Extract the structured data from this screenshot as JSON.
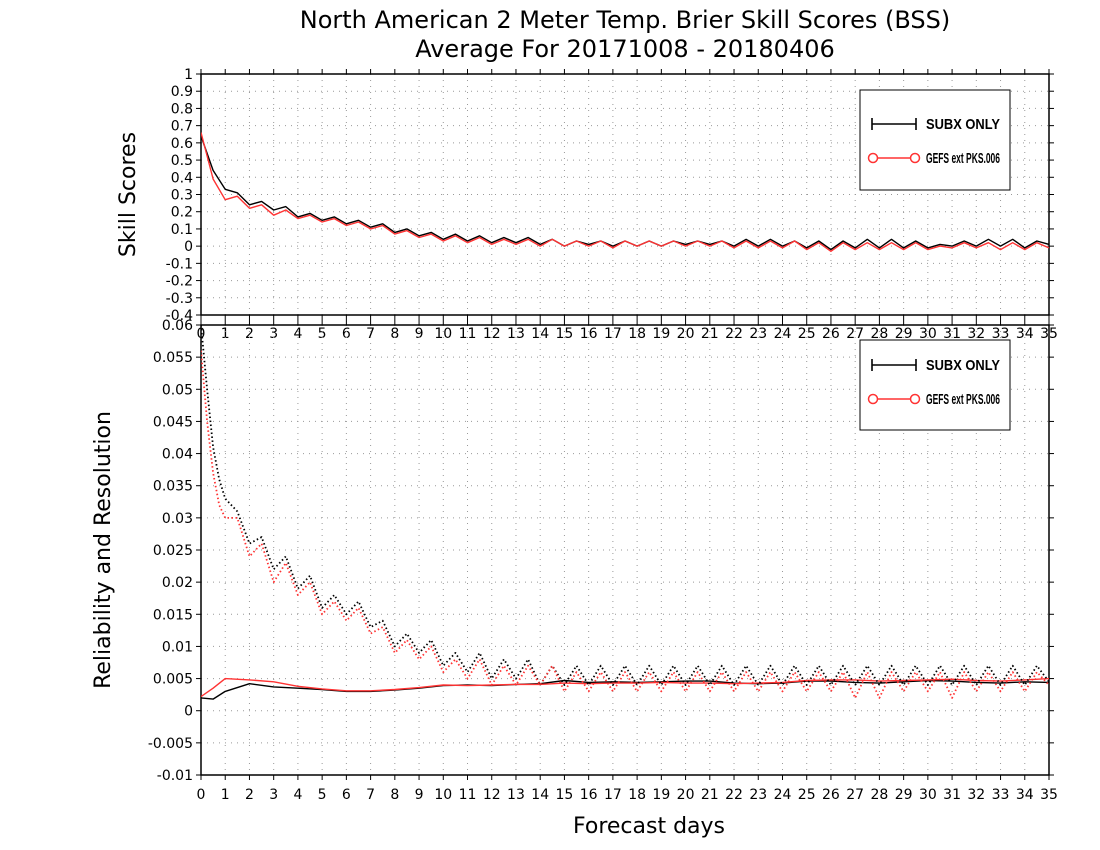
{
  "title": {
    "line1": "North American 2 Meter Temp. Brier Skill Scores (BSS)",
    "line2": "Average For 20171008 - 20180406"
  },
  "colors": {
    "sub_x": "#000000",
    "gefs": "#ff3333"
  },
  "chart_data": [
    {
      "type": "line",
      "ylabel": "Skill Scores",
      "ylim": [
        -0.4,
        1
      ],
      "y_ticks": [
        "1",
        "0.9",
        "0.8",
        "0.7",
        "0.6",
        "0.5",
        "0.4",
        "0.3",
        "0.2",
        "0.1",
        "0",
        "-0.1",
        "-0.2",
        "-0.3",
        "-0.4"
      ],
      "x_ticks": [
        "0",
        "1",
        "2",
        "3",
        "4",
        "5",
        "6",
        "7",
        "8",
        "9",
        "10",
        "11",
        "12",
        "13",
        "14",
        "15",
        "16",
        "17",
        "18",
        "19",
        "20",
        "21",
        "22",
        "23",
        "24",
        "25",
        "26",
        "27",
        "28",
        "29",
        "30",
        "31",
        "32",
        "33",
        "34",
        "35"
      ],
      "xlim": [
        0,
        35
      ],
      "grid": true,
      "legend_position": "top-right",
      "legend": [
        "SUBX ONLY",
        "GEFS ext PKS.006"
      ],
      "series": [
        {
          "name": "SUBX ONLY",
          "x": [
            0,
            0.5,
            1,
            1.5,
            2,
            2.5,
            3,
            3.5,
            4,
            4.5,
            5,
            5.5,
            6,
            6.5,
            7,
            7.5,
            8,
            8.5,
            9,
            9.5,
            10,
            10.5,
            11,
            11.5,
            12,
            12.5,
            13,
            13.5,
            14,
            14.5,
            15,
            15.5,
            16,
            16.5,
            17,
            17.5,
            18,
            18.5,
            19,
            19.5,
            20,
            20.5,
            21,
            21.5,
            22,
            22.5,
            23,
            23.5,
            24,
            24.5,
            25,
            25.5,
            26,
            26.5,
            27,
            27.5,
            28,
            28.5,
            29,
            29.5,
            30,
            30.5,
            31,
            31.5,
            32,
            32.5,
            33,
            33.5,
            34,
            34.5,
            35
          ],
          "y": [
            0.64,
            0.44,
            0.33,
            0.31,
            0.24,
            0.26,
            0.21,
            0.23,
            0.17,
            0.19,
            0.15,
            0.17,
            0.13,
            0.15,
            0.11,
            0.13,
            0.08,
            0.1,
            0.06,
            0.08,
            0.04,
            0.07,
            0.03,
            0.06,
            0.02,
            0.05,
            0.02,
            0.05,
            0.01,
            0.04,
            0.0,
            0.03,
            0.01,
            0.03,
            0.0,
            0.03,
            0.0,
            0.03,
            0.0,
            0.03,
            0.01,
            0.03,
            0.01,
            0.03,
            0.0,
            0.04,
            0.0,
            0.04,
            0.0,
            0.03,
            -0.01,
            0.03,
            -0.02,
            0.03,
            -0.01,
            0.04,
            -0.01,
            0.04,
            -0.01,
            0.03,
            -0.01,
            0.01,
            0.0,
            0.03,
            0.0,
            0.04,
            0.0,
            0.04,
            -0.01,
            0.03,
            0.01
          ]
        },
        {
          "name": "GEFS ext PKS.006",
          "x": [
            0,
            0.5,
            1,
            1.5,
            2,
            2.5,
            3,
            3.5,
            4,
            4.5,
            5,
            5.5,
            6,
            6.5,
            7,
            7.5,
            8,
            8.5,
            9,
            9.5,
            10,
            10.5,
            11,
            11.5,
            12,
            12.5,
            13,
            13.5,
            14,
            14.5,
            15,
            15.5,
            16,
            16.5,
            17,
            17.5,
            18,
            18.5,
            19,
            19.5,
            20,
            20.5,
            21,
            21.5,
            22,
            22.5,
            23,
            23.5,
            24,
            24.5,
            25,
            25.5,
            26,
            26.5,
            27,
            27.5,
            28,
            28.5,
            29,
            29.5,
            30,
            30.5,
            31,
            31.5,
            32,
            32.5,
            33,
            33.5,
            34,
            34.5,
            35
          ],
          "y": [
            0.66,
            0.39,
            0.27,
            0.29,
            0.22,
            0.24,
            0.18,
            0.21,
            0.16,
            0.18,
            0.14,
            0.16,
            0.12,
            0.14,
            0.1,
            0.12,
            0.07,
            0.09,
            0.05,
            0.07,
            0.03,
            0.06,
            0.02,
            0.05,
            0.01,
            0.04,
            0.01,
            0.04,
            0.0,
            0.04,
            0.0,
            0.03,
            0.0,
            0.03,
            -0.01,
            0.03,
            0.0,
            0.03,
            0.0,
            0.03,
            0.0,
            0.03,
            0.0,
            0.03,
            -0.01,
            0.03,
            -0.01,
            0.03,
            -0.01,
            0.03,
            -0.02,
            0.02,
            -0.03,
            0.02,
            -0.02,
            0.02,
            -0.02,
            0.02,
            -0.02,
            0.02,
            -0.02,
            0.0,
            -0.01,
            0.02,
            -0.01,
            0.02,
            -0.02,
            0.02,
            -0.02,
            0.02,
            -0.01
          ]
        }
      ]
    },
    {
      "type": "line",
      "ylabel": "Reliability and Resolution",
      "xlabel": "Forecast days",
      "ylim": [
        -0.01,
        0.06
      ],
      "y_ticks": [
        "0.06",
        "0.055",
        "0.05",
        "0.045",
        "0.04",
        "0.035",
        "0.03",
        "0.025",
        "0.02",
        "0.015",
        "0.01",
        "0.005",
        "0",
        "-0.005",
        "-0.01"
      ],
      "x_ticks": [
        "0",
        "1",
        "2",
        "3",
        "4",
        "5",
        "6",
        "7",
        "8",
        "9",
        "10",
        "11",
        "12",
        "13",
        "14",
        "15",
        "16",
        "17",
        "18",
        "19",
        "20",
        "21",
        "22",
        "23",
        "24",
        "25",
        "26",
        "27",
        "28",
        "29",
        "30",
        "31",
        "32",
        "33",
        "34",
        "35"
      ],
      "xlim": [
        0,
        35
      ],
      "grid": true,
      "legend_position": "top-right",
      "legend": [
        "SUBX ONLY",
        "GEFS ext PKS.006"
      ],
      "series": [
        {
          "name": "SUBX ONLY",
          "style": "solid",
          "x": [
            0,
            0.5,
            1,
            2,
            3,
            4,
            5,
            6,
            7,
            8,
            9,
            10,
            11,
            12,
            13,
            14,
            15,
            16,
            17,
            18,
            19,
            20,
            21,
            22,
            23,
            24,
            25,
            26,
            27,
            28,
            29,
            30,
            31,
            32,
            33,
            34,
            35
          ],
          "y": [
            0.002,
            0.0018,
            0.003,
            0.0042,
            0.0037,
            0.0035,
            0.0033,
            0.003,
            0.003,
            0.0032,
            0.0035,
            0.0039,
            0.004,
            0.0039,
            0.0041,
            0.0042,
            0.0047,
            0.0044,
            0.0045,
            0.0044,
            0.0045,
            0.0046,
            0.0046,
            0.0043,
            0.0042,
            0.0043,
            0.0046,
            0.0046,
            0.0044,
            0.0043,
            0.0045,
            0.0047,
            0.0046,
            0.0044,
            0.0043,
            0.0045,
            0.0044
          ]
        },
        {
          "name": "GEFS ext PKS.006",
          "style": "solid",
          "x": [
            0,
            0.5,
            1,
            2,
            3,
            4,
            5,
            6,
            7,
            8,
            9,
            10,
            11,
            12,
            13,
            14,
            15,
            16,
            17,
            18,
            19,
            20,
            21,
            22,
            23,
            24,
            25,
            26,
            27,
            28,
            29,
            30,
            31,
            32,
            33,
            34,
            35
          ],
          "y": [
            0.0022,
            0.0035,
            0.005,
            0.0048,
            0.0045,
            0.0038,
            0.0034,
            0.0031,
            0.0031,
            0.0033,
            0.0036,
            0.004,
            0.0039,
            0.004,
            0.0041,
            0.0041,
            0.0043,
            0.0042,
            0.0043,
            0.0043,
            0.0044,
            0.0043,
            0.0043,
            0.0042,
            0.0043,
            0.0044,
            0.0047,
            0.0048,
            0.0048,
            0.0046,
            0.0047,
            0.0048,
            0.0049,
            0.0047,
            0.0046,
            0.0048,
            0.005
          ]
        },
        {
          "name": "SUBX ONLY",
          "style": "dotted",
          "x": [
            0,
            0.25,
            0.5,
            0.75,
            1,
            1.5,
            2,
            2.5,
            3,
            3.5,
            4,
            4.5,
            5,
            5.5,
            6,
            6.5,
            7,
            7.5,
            8,
            8.5,
            9,
            9.5,
            10,
            10.5,
            11,
            11.5,
            12,
            12.5,
            13,
            13.5,
            14,
            14.5,
            15,
            15.5,
            16,
            16.5,
            17,
            17.5,
            18,
            18.5,
            19,
            19.5,
            20,
            20.5,
            21,
            21.5,
            22,
            22.5,
            23,
            23.5,
            24,
            24.5,
            25,
            25.5,
            26,
            26.5,
            27,
            27.5,
            28,
            28.5,
            29,
            29.5,
            30,
            30.5,
            31,
            31.5,
            32,
            32.5,
            33,
            33.5,
            34,
            34.5,
            35
          ],
          "y": [
            0.06,
            0.05,
            0.041,
            0.036,
            0.033,
            0.031,
            0.026,
            0.027,
            0.022,
            0.024,
            0.019,
            0.021,
            0.016,
            0.018,
            0.015,
            0.017,
            0.013,
            0.014,
            0.01,
            0.012,
            0.009,
            0.011,
            0.007,
            0.009,
            0.006,
            0.009,
            0.005,
            0.008,
            0.005,
            0.008,
            0.004,
            0.007,
            0.004,
            0.007,
            0.004,
            0.007,
            0.004,
            0.007,
            0.004,
            0.007,
            0.004,
            0.007,
            0.004,
            0.007,
            0.004,
            0.007,
            0.004,
            0.007,
            0.004,
            0.007,
            0.004,
            0.007,
            0.004,
            0.007,
            0.004,
            0.007,
            0.004,
            0.007,
            0.004,
            0.007,
            0.004,
            0.007,
            0.004,
            0.007,
            0.004,
            0.007,
            0.004,
            0.007,
            0.004,
            0.007,
            0.004,
            0.007,
            0.0045
          ]
        },
        {
          "name": "GEFS ext PKS.006",
          "style": "dotted",
          "x": [
            0,
            0.25,
            0.5,
            0.75,
            1,
            1.5,
            2,
            2.5,
            3,
            3.5,
            4,
            4.5,
            5,
            5.5,
            6,
            6.5,
            7,
            7.5,
            8,
            8.5,
            9,
            9.5,
            10,
            10.5,
            11,
            11.5,
            12,
            12.5,
            13,
            13.5,
            14,
            14.5,
            15,
            15.5,
            16,
            16.5,
            17,
            17.5,
            18,
            18.5,
            19,
            19.5,
            20,
            20.5,
            21,
            21.5,
            22,
            22.5,
            23,
            23.5,
            24,
            24.5,
            25,
            25.5,
            26,
            26.5,
            27,
            27.5,
            28,
            28.5,
            29,
            29.5,
            30,
            30.5,
            31,
            31.5,
            32,
            32.5,
            33,
            33.5,
            34,
            34.5,
            35
          ],
          "y": [
            0.056,
            0.045,
            0.037,
            0.032,
            0.03,
            0.03,
            0.024,
            0.026,
            0.02,
            0.023,
            0.018,
            0.02,
            0.015,
            0.017,
            0.014,
            0.016,
            0.012,
            0.013,
            0.009,
            0.011,
            0.008,
            0.01,
            0.006,
            0.008,
            0.005,
            0.008,
            0.004,
            0.007,
            0.004,
            0.007,
            0.004,
            0.007,
            0.003,
            0.006,
            0.003,
            0.006,
            0.003,
            0.006,
            0.003,
            0.006,
            0.003,
            0.006,
            0.003,
            0.006,
            0.003,
            0.006,
            0.003,
            0.006,
            0.003,
            0.006,
            0.003,
            0.006,
            0.003,
            0.006,
            0.003,
            0.006,
            0.002,
            0.006,
            0.002,
            0.006,
            0.003,
            0.006,
            0.003,
            0.006,
            0.002,
            0.006,
            0.003,
            0.006,
            0.003,
            0.006,
            0.003,
            0.006,
            0.004
          ]
        }
      ]
    }
  ]
}
